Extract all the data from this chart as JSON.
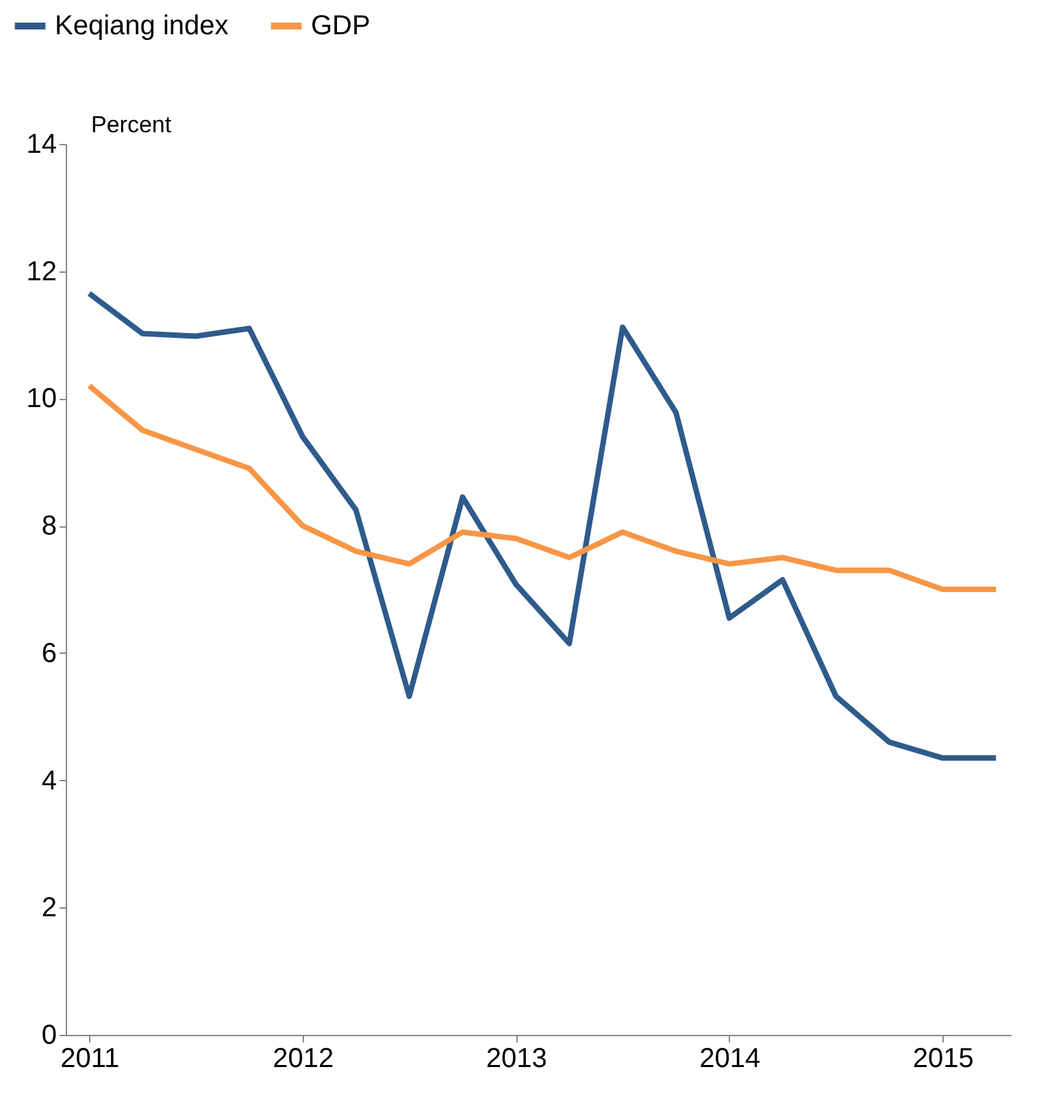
{
  "chart_data": {
    "type": "line",
    "ylabel": "Percent",
    "x": [
      2011,
      2011.25,
      2011.5,
      2011.75,
      2012,
      2012.25,
      2012.5,
      2012.75,
      2013,
      2013.25,
      2013.5,
      2013.75,
      2014,
      2014.25,
      2014.5,
      2014.75,
      2015,
      2015.25
    ],
    "series": [
      {
        "name": "Keqiang index",
        "color": "#2e5b8c",
        "values": [
          11.65,
          11.02,
          10.98,
          11.1,
          9.4,
          8.25,
          5.32,
          8.45,
          7.08,
          6.15,
          11.12,
          9.78,
          6.55,
          7.15,
          5.32,
          4.6,
          4.35,
          4.35
        ]
      },
      {
        "name": "GDP",
        "color": "#f79646",
        "values": [
          10.2,
          9.5,
          9.2,
          8.9,
          8.0,
          7.6,
          7.4,
          7.9,
          7.8,
          7.5,
          7.9,
          7.6,
          7.4,
          7.5,
          7.3,
          7.3,
          7.0,
          7.0
        ]
      }
    ],
    "xlim": [
      2010.89,
      2015.32
    ],
    "xticks": [
      2011,
      2012,
      2013,
      2014,
      2015
    ],
    "ylim": [
      0,
      14
    ],
    "yticks": [
      0,
      2,
      4,
      6,
      8,
      10,
      12,
      14
    ],
    "grid": false,
    "legend": "top left",
    "marker": "none",
    "line_style": "solid"
  }
}
